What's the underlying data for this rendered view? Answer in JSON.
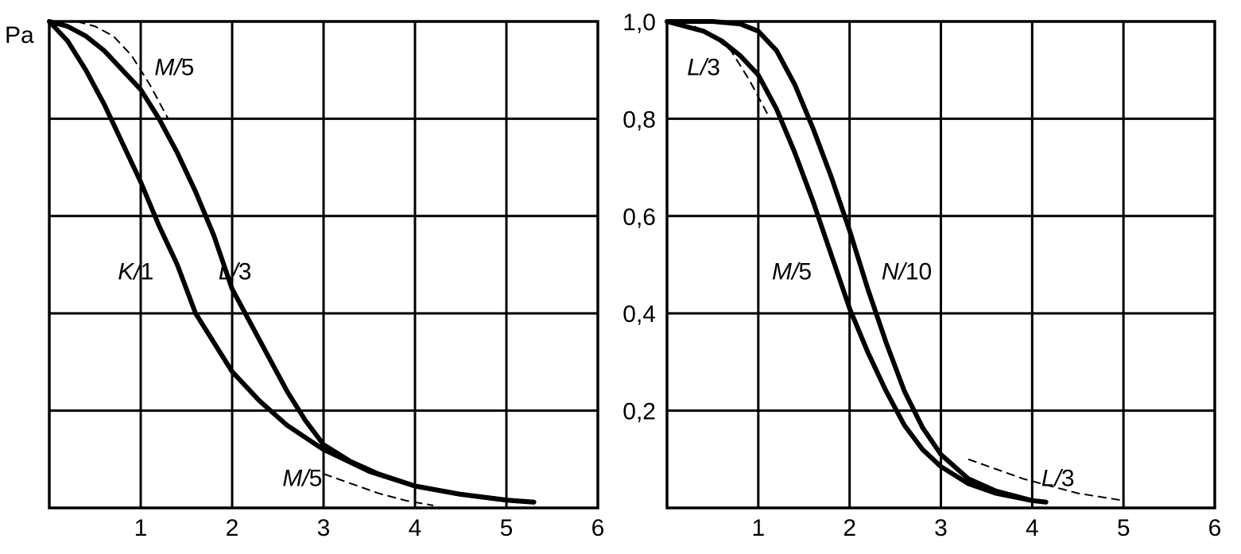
{
  "chart_data": [
    {
      "type": "line",
      "title": "",
      "xlabel": "",
      "ylabel": "Pa",
      "xlim": [
        0,
        6
      ],
      "ylim": [
        0,
        1.0
      ],
      "x_ticks": [
        "1",
        "2",
        "3",
        "4",
        "5",
        "6"
      ],
      "y_ticks": [],
      "grid": true,
      "series": [
        {
          "name": "K/1",
          "style": "solid",
          "x": [
            0,
            0.2,
            0.4,
            0.6,
            0.8,
            1.0,
            1.2,
            1.4,
            1.6,
            1.8,
            2.0,
            2.3,
            2.6,
            3.0,
            3.5,
            4.0,
            4.5,
            5.0,
            5.3
          ],
          "y": [
            1.0,
            0.96,
            0.9,
            0.83,
            0.75,
            0.67,
            0.58,
            0.5,
            0.4,
            0.34,
            0.28,
            0.22,
            0.17,
            0.12,
            0.075,
            0.045,
            0.028,
            0.016,
            0.012
          ]
        },
        {
          "name": "L/3",
          "style": "solid",
          "x": [
            0,
            0.2,
            0.4,
            0.6,
            0.8,
            1.0,
            1.2,
            1.4,
            1.6,
            1.8,
            2.0,
            2.2,
            2.4,
            2.6,
            2.8,
            3.0,
            3.3,
            3.6,
            4.0,
            4.5,
            5.0,
            5.3
          ],
          "y": [
            1.0,
            0.99,
            0.97,
            0.94,
            0.9,
            0.86,
            0.8,
            0.73,
            0.65,
            0.56,
            0.45,
            0.38,
            0.31,
            0.24,
            0.18,
            0.13,
            0.095,
            0.07,
            0.045,
            0.028,
            0.016,
            0.012
          ]
        },
        {
          "name": "M/5",
          "style": "dashed",
          "x": [
            0.3,
            0.5,
            0.7,
            0.9,
            1.1,
            1.3
          ],
          "y": [
            1.0,
            0.99,
            0.97,
            0.93,
            0.87,
            0.8
          ]
        },
        {
          "name": "M/5",
          "style": "dashed",
          "x": [
            3.0,
            3.3,
            3.6,
            3.9,
            4.2
          ],
          "y": [
            0.07,
            0.05,
            0.03,
            0.015,
            0.005
          ]
        }
      ],
      "labels": [
        {
          "text": "M/5",
          "x": 1.15,
          "y": 0.89
        },
        {
          "text": "K/1",
          "x": 0.75,
          "y": 0.47
        },
        {
          "text": "L/3",
          "x": 1.85,
          "y": 0.47
        },
        {
          "text": "M/5",
          "x": 2.55,
          "y": 0.045
        }
      ]
    },
    {
      "type": "line",
      "title": "",
      "xlabel": "",
      "ylabel": "",
      "xlim": [
        0,
        6
      ],
      "ylim": [
        0,
        1.0
      ],
      "x_ticks": [
        "1",
        "2",
        "3",
        "4",
        "5",
        "6"
      ],
      "y_ticks": [
        "1,0",
        "0,8",
        "0,6",
        "0,4",
        "0,2"
      ],
      "grid": true,
      "series": [
        {
          "name": "M/5",
          "style": "solid",
          "x": [
            0,
            0.2,
            0.4,
            0.6,
            0.8,
            1.0,
            1.2,
            1.4,
            1.6,
            1.8,
            2.0,
            2.2,
            2.4,
            2.6,
            2.8,
            3.0,
            3.3,
            3.6,
            4.0,
            4.15
          ],
          "y": [
            1.0,
            0.99,
            0.98,
            0.96,
            0.93,
            0.89,
            0.82,
            0.73,
            0.63,
            0.52,
            0.41,
            0.32,
            0.24,
            0.17,
            0.12,
            0.085,
            0.05,
            0.03,
            0.015,
            0.012
          ]
        },
        {
          "name": "N/10",
          "style": "solid",
          "x": [
            0,
            0.5,
            0.8,
            1.0,
            1.2,
            1.4,
            1.6,
            1.8,
            2.0,
            2.2,
            2.4,
            2.6,
            2.8,
            3.0,
            3.3,
            3.6,
            4.0,
            4.15
          ],
          "y": [
            1.0,
            1.0,
            0.995,
            0.98,
            0.94,
            0.87,
            0.78,
            0.68,
            0.57,
            0.45,
            0.34,
            0.24,
            0.165,
            0.11,
            0.06,
            0.035,
            0.015,
            0.012
          ]
        },
        {
          "name": "L/3",
          "style": "dashed",
          "x": [
            0.3,
            0.5,
            0.7,
            0.9,
            1.1
          ],
          "y": [
            0.99,
            0.97,
            0.94,
            0.88,
            0.81
          ]
        },
        {
          "name": "L/3",
          "style": "dashed",
          "x": [
            3.3,
            3.6,
            3.9,
            4.2,
            4.5,
            5.0
          ],
          "y": [
            0.1,
            0.08,
            0.06,
            0.045,
            0.03,
            0.015
          ]
        }
      ],
      "labels": [
        {
          "text": "L/3",
          "x": 0.22,
          "y": 0.89
        },
        {
          "text": "M/5",
          "x": 1.15,
          "y": 0.47
        },
        {
          "text": "N/10",
          "x": 2.35,
          "y": 0.47
        },
        {
          "text": "L/3",
          "x": 4.1,
          "y": 0.045
        }
      ]
    }
  ]
}
